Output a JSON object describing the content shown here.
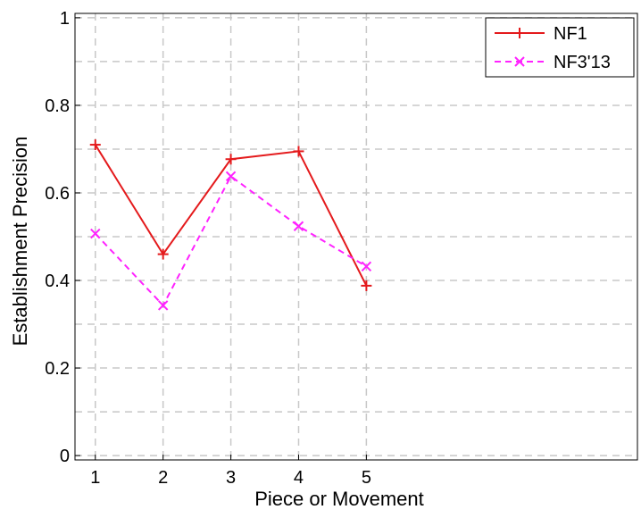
{
  "chart_data": {
    "type": "line",
    "title": "",
    "xlabel": "Piece or Movement",
    "ylabel": "Establishment Precision",
    "x": [
      1,
      2,
      3,
      4,
      5
    ],
    "xlim": [
      0.7,
      9.0
    ],
    "ylim": [
      -0.01,
      1.01
    ],
    "xticks": [
      1,
      2,
      3,
      4,
      5
    ],
    "xtick_labels": [
      "1",
      "2",
      "3",
      "4",
      "5"
    ],
    "yticks": [
      0,
      0.2,
      0.4,
      0.6,
      0.8,
      1
    ],
    "ytick_labels": [
      "0",
      "0.2",
      "0.4",
      "0.6",
      "0.8",
      "1"
    ],
    "minor_yticks": [
      0.1,
      0.3,
      0.5,
      0.7,
      0.9
    ],
    "grid": true,
    "legend_position": "top-right",
    "series": [
      {
        "name": "NF1",
        "values": [
          0.71,
          0.46,
          0.677,
          0.695,
          0.388
        ],
        "color": "#e41a1c",
        "marker": "plus",
        "linestyle": "solid"
      },
      {
        "name": "NF3'13",
        "values": [
          0.507,
          0.343,
          0.638,
          0.524,
          0.432
        ],
        "color": "#ff22ff",
        "marker": "x",
        "linestyle": "dashed"
      }
    ]
  }
}
